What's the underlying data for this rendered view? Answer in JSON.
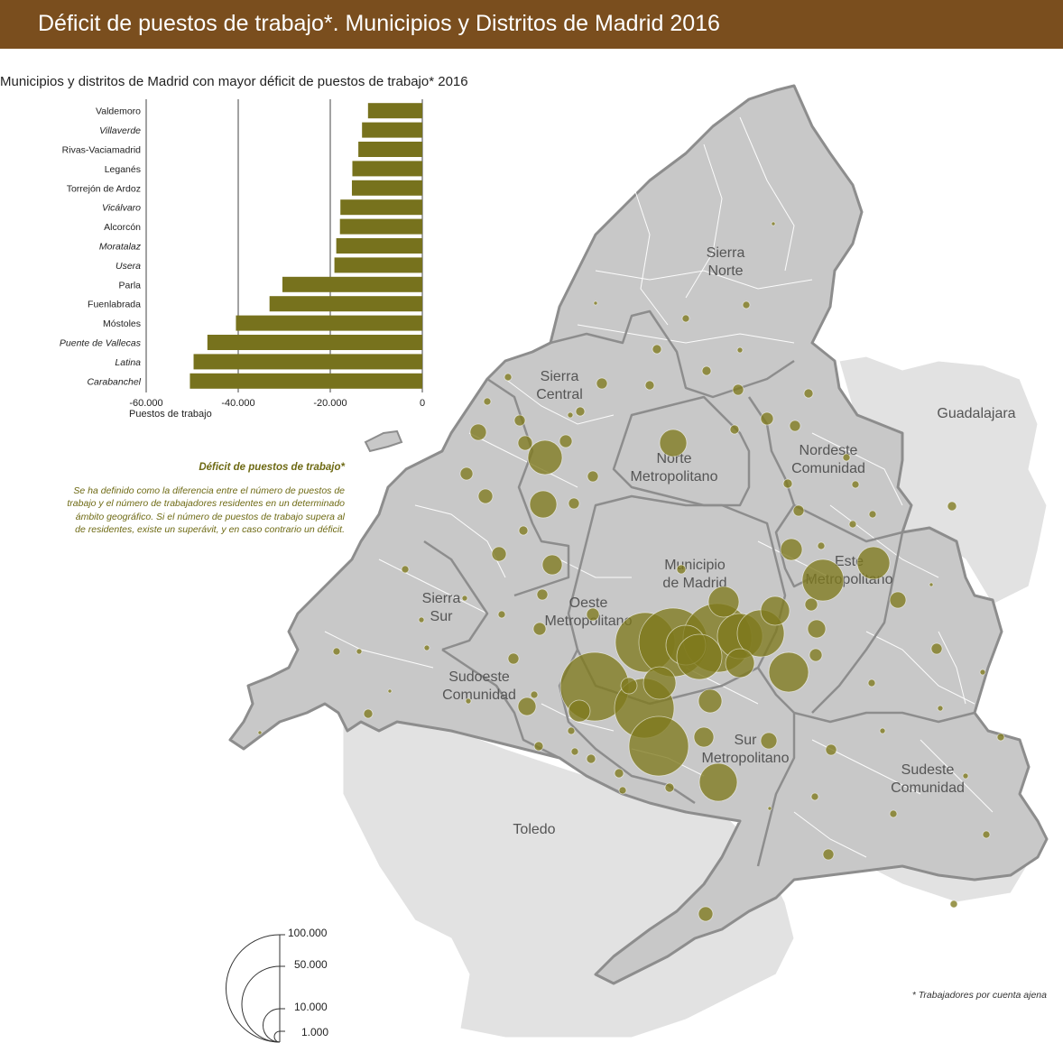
{
  "title": "Déficit de puestos de trabajo*. Municipios y Distritos de Madrid 2016",
  "colors": {
    "title_bg": "#7a4e1e",
    "bar": "#77721d",
    "bubble": "#7f7a1e",
    "region": "#c8c8c8",
    "outside": "#e0e0e0"
  },
  "regions": [
    {
      "name": [
        "Sierra",
        "Norte"
      ]
    },
    {
      "name": [
        "Sierra",
        "Central"
      ]
    },
    {
      "name": [
        "Nordeste",
        "Comunidad"
      ]
    },
    {
      "name": [
        "Norte",
        "Metropolitano"
      ]
    },
    {
      "name": [
        "Este",
        "Metropolitano"
      ]
    },
    {
      "name": [
        "Municipio",
        "de Madrid"
      ]
    },
    {
      "name": [
        "Oeste",
        "Metropolitano"
      ]
    },
    {
      "name": [
        "Sierra",
        "Sur"
      ]
    },
    {
      "name": [
        "Sudoeste",
        "Comunidad"
      ]
    },
    {
      "name": [
        "Sur",
        "Metropolitano"
      ]
    },
    {
      "name": [
        "Sudeste",
        "Comunidad"
      ]
    }
  ],
  "external_labels": [
    "Guadalajara",
    "Toledo"
  ],
  "chart_data": {
    "type": "bar",
    "orientation": "horizontal",
    "title": "Municipios y distritos de Madrid con mayor déficit de puestos de trabajo* 2016",
    "xlabel": "Puestos de trabajo",
    "xlim": [
      -60000,
      0
    ],
    "ticks": [
      -60000,
      -40000,
      -20000,
      0
    ],
    "tick_labels": [
      "-60.000",
      "-40.000",
      "-20.000",
      "0"
    ],
    "categories": [
      "Valdemoro",
      "Villaverde",
      "Rivas-Vaciamadrid",
      "Leganés",
      "Torrejón de Ardoz",
      "Vicálvaro",
      "Alcorcón",
      "Moratalaz",
      "Usera",
      "Parla",
      "Fuenlabrada",
      "Móstoles",
      "Puente de Vallecas",
      "Latina",
      "Carabanchel"
    ],
    "italic": [
      false,
      true,
      false,
      false,
      false,
      true,
      false,
      true,
      true,
      false,
      false,
      false,
      true,
      true,
      true
    ],
    "values": [
      -11800,
      -13100,
      -13900,
      -15200,
      -15300,
      -17800,
      -17900,
      -18700,
      -19100,
      -30400,
      -33200,
      -40500,
      -46700,
      -49700,
      -50500
    ]
  },
  "legend": {
    "title": "Déficit de puestos de trabajo*",
    "description_lines": [
      "Se ha definido como la diferencia entre el número de puestos de",
      "trabajo y el número de trabajadores residentes  en un determinado",
      "ámbito geográfico. Si el número de puestos de trabajo supera al",
      "de residentes, existe un superávit, y en caso contrario un déficit."
    ],
    "sizes": [
      {
        "label": "100.000",
        "value": 100000
      },
      {
        "label": "50.000",
        "value": 50000
      },
      {
        "label": "10.000",
        "value": 10000
      },
      {
        "label": "1.000",
        "value": 1000
      }
    ]
  },
  "footnote": "* Trabajadores por cuenta ajena"
}
